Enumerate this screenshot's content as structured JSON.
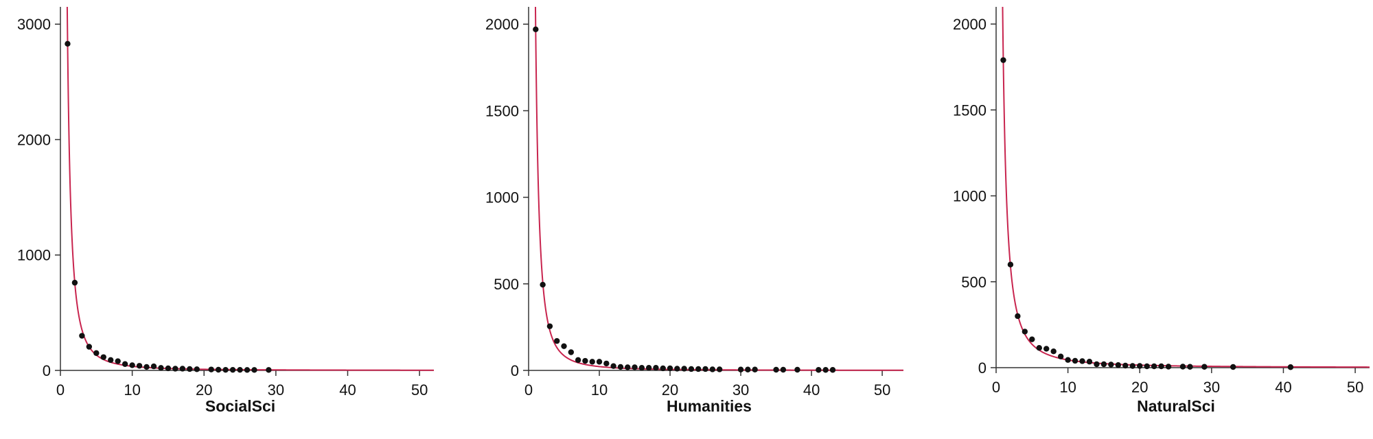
{
  "chart_data": [
    {
      "type": "scatter",
      "xlabel": "SocialSci",
      "ylabel": "",
      "xlim": [
        0,
        52
      ],
      "ylim": [
        0,
        3150
      ],
      "xticks": [
        0,
        10,
        20,
        30,
        40,
        50
      ],
      "yticks": [
        0,
        1000,
        2000,
        3000
      ],
      "fit_color": "#c8244e",
      "point_color": "#111111",
      "fit": {
        "a": 2840,
        "b": 1.9
      },
      "points": {
        "x": [
          1,
          2,
          3,
          4,
          5,
          6,
          7,
          8,
          9,
          10,
          11,
          12,
          13,
          14,
          15,
          16,
          17,
          18,
          19,
          21,
          22,
          23,
          24,
          25,
          26,
          27,
          29
        ],
        "y": [
          2830,
          760,
          300,
          205,
          150,
          115,
          90,
          80,
          55,
          45,
          40,
          30,
          35,
          22,
          18,
          15,
          15,
          12,
          10,
          8,
          6,
          5,
          5,
          5,
          4,
          4,
          4
        ]
      }
    },
    {
      "type": "scatter",
      "xlabel": "Humanities",
      "ylabel": "",
      "xlim": [
        0,
        53
      ],
      "ylim": [
        0,
        2100
      ],
      "xticks": [
        0,
        10,
        20,
        30,
        40,
        50
      ],
      "yticks": [
        0,
        500,
        1000,
        1500,
        2000
      ],
      "fit_color": "#c8244e",
      "point_color": "#111111",
      "fit": {
        "a": 1970,
        "b": 1.95
      },
      "points": {
        "x": [
          1,
          2,
          3,
          4,
          5,
          6,
          7,
          8,
          9,
          10,
          11,
          12,
          13,
          14,
          15,
          16,
          17,
          18,
          19,
          20,
          21,
          22,
          23,
          24,
          25,
          26,
          27,
          30,
          31,
          32,
          35,
          36,
          38,
          41,
          42,
          43
        ],
        "y": [
          1970,
          495,
          255,
          170,
          140,
          105,
          60,
          55,
          50,
          50,
          40,
          25,
          20,
          18,
          18,
          15,
          15,
          15,
          12,
          12,
          10,
          10,
          8,
          8,
          8,
          6,
          6,
          5,
          5,
          5,
          4,
          4,
          4,
          3,
          3,
          3
        ]
      }
    },
    {
      "type": "scatter",
      "xlabel": "NaturalSci",
      "ylabel": "",
      "xlim": [
        0,
        52
      ],
      "ylim": [
        0,
        2100
      ],
      "xticks": [
        0,
        10,
        20,
        30,
        40,
        50
      ],
      "yticks": [
        0,
        500,
        1000,
        1500,
        2000
      ],
      "fit_color": "#c8244e",
      "point_color": "#111111",
      "fit": {
        "a": 1790,
        "b": 1.6
      },
      "points": {
        "x": [
          1,
          2,
          3,
          4,
          5,
          6,
          7,
          8,
          9,
          10,
          11,
          12,
          13,
          14,
          15,
          16,
          17,
          18,
          19,
          20,
          21,
          22,
          23,
          24,
          26,
          27,
          29,
          33,
          41
        ],
        "y": [
          1790,
          600,
          300,
          210,
          165,
          115,
          110,
          95,
          65,
          45,
          40,
          38,
          35,
          20,
          20,
          18,
          15,
          12,
          10,
          10,
          8,
          8,
          8,
          6,
          6,
          5,
          5,
          4,
          3
        ]
      }
    }
  ]
}
